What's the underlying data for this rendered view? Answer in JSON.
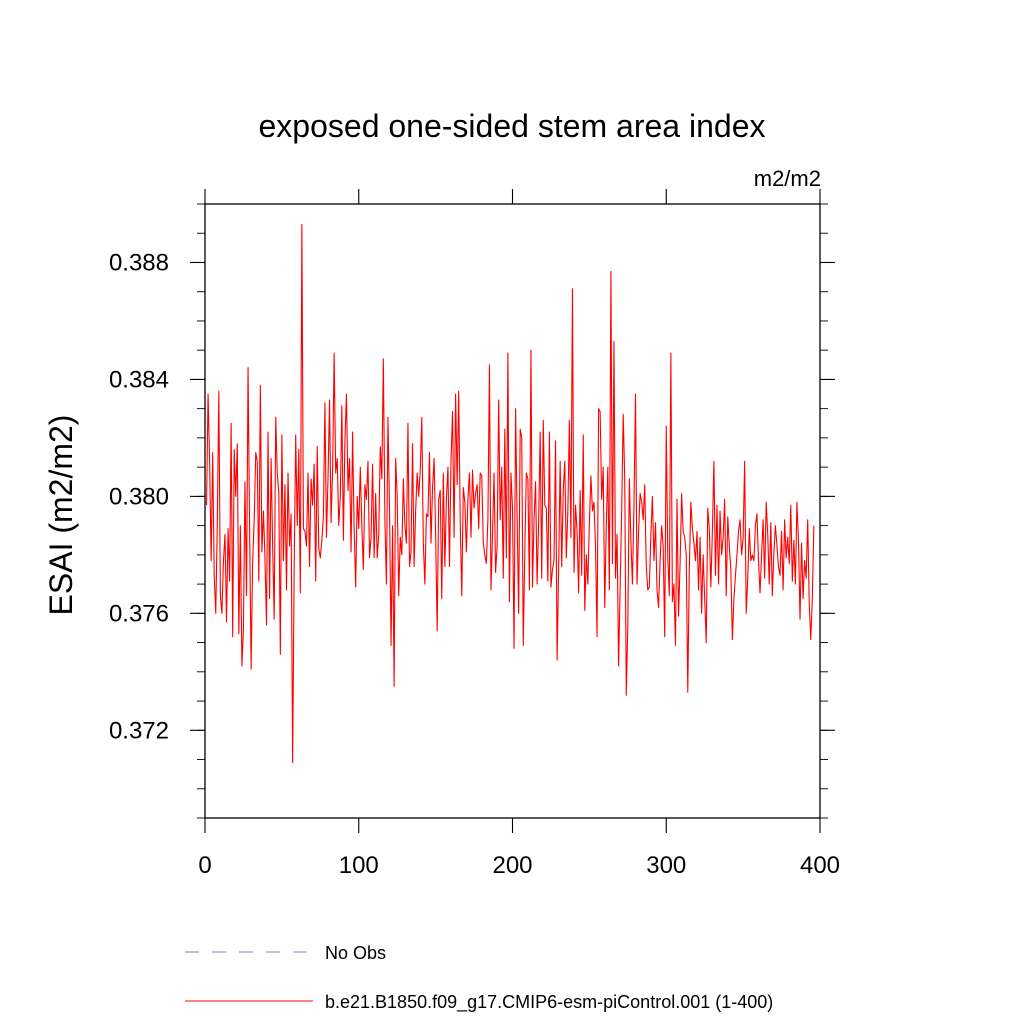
{
  "chart_data": {
    "type": "line",
    "title": "exposed one-sided stem area index",
    "units": "m2/m2",
    "ylabel": "ESAI  (m2/m2)",
    "xlabel": "",
    "xlim": [
      0,
      400
    ],
    "ylim": [
      0.369,
      0.39
    ],
    "x_ticks": [
      0,
      100,
      200,
      300,
      400
    ],
    "x_tick_labels": [
      "0",
      "100",
      "200",
      "300",
      "400"
    ],
    "y_ticks": [
      0.372,
      0.376,
      0.38,
      0.384,
      0.388
    ],
    "y_tick_labels": [
      "0.372",
      "0.376",
      "0.380",
      "0.384",
      "0.388"
    ],
    "series": [
      {
        "name": "b.e21.B1850.f09_g17.CMIP6-esm-piControl.001 (1-400)",
        "color": "#ff0000",
        "style": "solid",
        "x_start": 1,
        "x_step": 1,
        "values": [
          0.3797,
          0.3835,
          0.3812,
          0.3778,
          0.3815,
          0.3773,
          0.376,
          0.3791,
          0.3836,
          0.3766,
          0.376,
          0.3778,
          0.3787,
          0.3757,
          0.3789,
          0.3771,
          0.3825,
          0.3752,
          0.3816,
          0.38,
          0.3818,
          0.3753,
          0.379,
          0.3742,
          0.3755,
          0.3805,
          0.3766,
          0.3844,
          0.379,
          0.3741,
          0.3778,
          0.3792,
          0.3815,
          0.3812,
          0.3771,
          0.3838,
          0.3781,
          0.3795,
          0.3779,
          0.3756,
          0.3822,
          0.3765,
          0.3813,
          0.3783,
          0.3758,
          0.3827,
          0.3808,
          0.3801,
          0.3746,
          0.3821,
          0.3778,
          0.3804,
          0.3768,
          0.3808,
          0.3783,
          0.3794,
          0.3709,
          0.3776,
          0.3821,
          0.379,
          0.3816,
          0.3767,
          0.3893,
          0.3789,
          0.3788,
          0.3783,
          0.3808,
          0.3776,
          0.3806,
          0.3797,
          0.3811,
          0.3771,
          0.3817,
          0.3782,
          0.3779,
          0.3785,
          0.3793,
          0.3832,
          0.3786,
          0.3806,
          0.3833,
          0.3791,
          0.3809,
          0.3849,
          0.3808,
          0.3813,
          0.379,
          0.38,
          0.3831,
          0.3785,
          0.3819,
          0.3835,
          0.3802,
          0.3813,
          0.3781,
          0.3822,
          0.3789,
          0.3769,
          0.38,
          0.3789,
          0.381,
          0.379,
          0.3775,
          0.3804,
          0.3799,
          0.3812,
          0.3779,
          0.3786,
          0.3811,
          0.3779,
          0.3801,
          0.3779,
          0.3787,
          0.3817,
          0.3806,
          0.3847,
          0.3792,
          0.377,
          0.3827,
          0.3796,
          0.3749,
          0.379,
          0.3735,
          0.3813,
          0.38,
          0.3766,
          0.3786,
          0.378,
          0.3806,
          0.379,
          0.3784,
          0.3825,
          0.3776,
          0.3781,
          0.3818,
          0.3776,
          0.3795,
          0.3808,
          0.38,
          0.3809,
          0.3827,
          0.3784,
          0.377,
          0.3794,
          0.3793,
          0.3815,
          0.3784,
          0.3803,
          0.3813,
          0.3787,
          0.3754,
          0.3799,
          0.3802,
          0.3765,
          0.3808,
          0.3776,
          0.3799,
          0.381,
          0.3776,
          0.3812,
          0.3829,
          0.3786,
          0.3835,
          0.3804,
          0.3836,
          0.3791,
          0.3766,
          0.3803,
          0.3798,
          0.3781,
          0.3799,
          0.3808,
          0.3786,
          0.3809,
          0.3796,
          0.3801,
          0.3804,
          0.3789,
          0.3808,
          0.3807,
          0.3784,
          0.378,
          0.3777,
          0.3792,
          0.3845,
          0.3768,
          0.3787,
          0.3808,
          0.3774,
          0.3783,
          0.3833,
          0.3792,
          0.381,
          0.3772,
          0.3823,
          0.3779,
          0.3849,
          0.3764,
          0.3808,
          0.3796,
          0.3748,
          0.383,
          0.3793,
          0.376,
          0.3823,
          0.382,
          0.3749,
          0.3781,
          0.3808,
          0.3806,
          0.3768,
          0.385,
          0.3769,
          0.3792,
          0.3805,
          0.377,
          0.3791,
          0.3822,
          0.3772,
          0.3826,
          0.3797,
          0.3796,
          0.3771,
          0.3822,
          0.3769,
          0.3775,
          0.3778,
          0.3819,
          0.3744,
          0.3775,
          0.3812,
          0.3776,
          0.3802,
          0.3812,
          0.3779,
          0.3795,
          0.3826,
          0.3786,
          0.3871,
          0.3774,
          0.3797,
          0.3788,
          0.3767,
          0.3802,
          0.3773,
          0.3821,
          0.3761,
          0.378,
          0.377,
          0.3791,
          0.3807,
          0.3795,
          0.3798,
          0.3783,
          0.3752,
          0.383,
          0.3829,
          0.3799,
          0.381,
          0.3762,
          0.379,
          0.381,
          0.3768,
          0.3877,
          0.3777,
          0.3853,
          0.3772,
          0.3787,
          0.3742,
          0.3769,
          0.3795,
          0.3828,
          0.3806,
          0.3732,
          0.3756,
          0.3806,
          0.3785,
          0.377,
          0.3797,
          0.3835,
          0.377,
          0.3788,
          0.3801,
          0.3798,
          0.3792,
          0.3804,
          0.3776,
          0.3768,
          0.3769,
          0.3787,
          0.38,
          0.3778,
          0.3791,
          0.3768,
          0.3762,
          0.3778,
          0.379,
          0.3783,
          0.3752,
          0.3824,
          0.3779,
          0.3766,
          0.3849,
          0.3764,
          0.377,
          0.3749,
          0.3799,
          0.3759,
          0.3777,
          0.3801,
          0.3788,
          0.3786,
          0.378,
          0.3733,
          0.3775,
          0.3798,
          0.3789,
          0.3784,
          0.3778,
          0.3788,
          0.3768,
          0.3786,
          0.376,
          0.378,
          0.3765,
          0.375,
          0.3796,
          0.3789,
          0.3769,
          0.3788,
          0.3812,
          0.3773,
          0.3797,
          0.377,
          0.3795,
          0.378,
          0.3786,
          0.3799,
          0.3766,
          0.3793,
          0.3783,
          0.3775,
          0.3751,
          0.3765,
          0.3773,
          0.378,
          0.3788,
          0.3792,
          0.378,
          0.3786,
          0.3812,
          0.376,
          0.3772,
          0.3789,
          0.3778,
          0.378,
          0.3778,
          0.379,
          0.3794,
          0.3778,
          0.3767,
          0.378,
          0.3792,
          0.3772,
          0.3798,
          0.3787,
          0.377,
          0.3791,
          0.3766,
          0.3781,
          0.379,
          0.3783,
          0.3776,
          0.3773,
          0.3788,
          0.3768,
          0.3792,
          0.3779,
          0.3786,
          0.3777,
          0.3797,
          0.3771,
          0.3785,
          0.377,
          0.3798,
          0.3785,
          0.3758,
          0.3784,
          0.3765,
          0.3778,
          0.3772,
          0.3792,
          0.3763,
          0.3751,
          0.3765,
          0.379
        ]
      }
    ],
    "legend": {
      "position": "bottom",
      "entries": [
        {
          "label": "No Obs",
          "color": "#8080c0",
          "style": "dashed"
        },
        {
          "label": "b.e21.B1850.f09_g17.CMIP6-esm-piControl.001 (1-400)",
          "color": "#ff0000",
          "style": "solid"
        }
      ]
    }
  }
}
